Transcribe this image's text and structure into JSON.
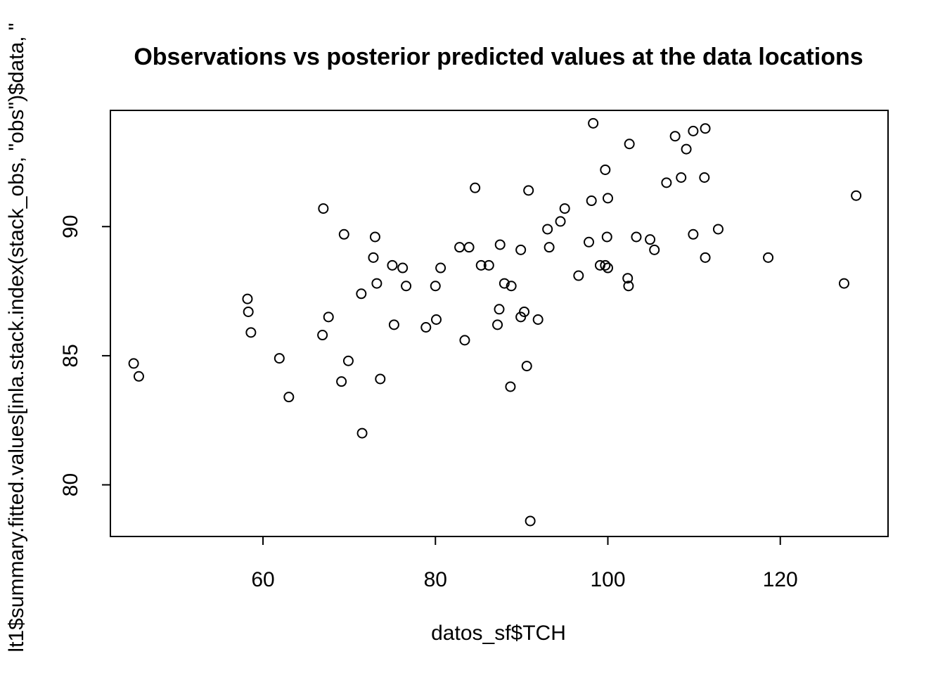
{
  "chart_data": {
    "type": "scatter",
    "title": "Observations vs posterior predicted values at the data locations",
    "xlabel": "datos_sf$TCH",
    "ylabel": "lt1$summary.fitted.values[inla.stack.index(stack_obs, \"obs\")$data, \"",
    "xlim": [
      42.3,
      132.5
    ],
    "ylim": [
      78.0,
      94.5
    ],
    "xticks": [
      60,
      80,
      100,
      120
    ],
    "yticks": [
      80,
      85,
      90
    ],
    "xtick_labels": [
      "60",
      "80",
      "100",
      "120"
    ],
    "ytick_labels": [
      "80",
      "85",
      "90"
    ],
    "grid": false,
    "points": [
      {
        "x": 45.0,
        "y": 84.7
      },
      {
        "x": 45.6,
        "y": 84.2
      },
      {
        "x": 58.2,
        "y": 87.2
      },
      {
        "x": 58.3,
        "y": 86.7
      },
      {
        "x": 58.6,
        "y": 85.9
      },
      {
        "x": 61.9,
        "y": 84.9
      },
      {
        "x": 63.0,
        "y": 83.4
      },
      {
        "x": 66.9,
        "y": 85.8
      },
      {
        "x": 67.0,
        "y": 90.7
      },
      {
        "x": 67.6,
        "y": 86.5
      },
      {
        "x": 69.1,
        "y": 84.0
      },
      {
        "x": 69.4,
        "y": 89.7
      },
      {
        "x": 69.9,
        "y": 84.8
      },
      {
        "x": 71.4,
        "y": 87.4
      },
      {
        "x": 71.5,
        "y": 82.0
      },
      {
        "x": 72.8,
        "y": 88.8
      },
      {
        "x": 73.0,
        "y": 89.6
      },
      {
        "x": 73.2,
        "y": 87.8
      },
      {
        "x": 73.6,
        "y": 84.1
      },
      {
        "x": 75.0,
        "y": 88.5
      },
      {
        "x": 75.2,
        "y": 86.2
      },
      {
        "x": 76.2,
        "y": 88.4
      },
      {
        "x": 76.6,
        "y": 87.7
      },
      {
        "x": 78.9,
        "y": 86.1
      },
      {
        "x": 80.0,
        "y": 87.7
      },
      {
        "x": 80.1,
        "y": 86.4
      },
      {
        "x": 80.6,
        "y": 88.4
      },
      {
        "x": 82.8,
        "y": 89.2
      },
      {
        "x": 83.4,
        "y": 85.6
      },
      {
        "x": 83.9,
        "y": 89.2
      },
      {
        "x": 84.6,
        "y": 91.5
      },
      {
        "x": 85.3,
        "y": 88.5
      },
      {
        "x": 86.2,
        "y": 88.5
      },
      {
        "x": 87.2,
        "y": 86.2
      },
      {
        "x": 87.4,
        "y": 86.8
      },
      {
        "x": 87.5,
        "y": 89.3
      },
      {
        "x": 88.0,
        "y": 87.8
      },
      {
        "x": 88.7,
        "y": 83.8
      },
      {
        "x": 88.8,
        "y": 87.7
      },
      {
        "x": 89.9,
        "y": 89.1
      },
      {
        "x": 89.9,
        "y": 86.5
      },
      {
        "x": 90.3,
        "y": 86.7
      },
      {
        "x": 90.6,
        "y": 84.6
      },
      {
        "x": 90.8,
        "y": 91.4
      },
      {
        "x": 91.0,
        "y": 78.6
      },
      {
        "x": 91.9,
        "y": 86.4
      },
      {
        "x": 93.0,
        "y": 89.9
      },
      {
        "x": 93.2,
        "y": 89.2
      },
      {
        "x": 94.5,
        "y": 90.2
      },
      {
        "x": 95.0,
        "y": 90.7
      },
      {
        "x": 96.6,
        "y": 88.1
      },
      {
        "x": 97.8,
        "y": 89.4
      },
      {
        "x": 98.1,
        "y": 91.0
      },
      {
        "x": 98.3,
        "y": 94.0
      },
      {
        "x": 99.1,
        "y": 88.5
      },
      {
        "x": 99.7,
        "y": 92.2
      },
      {
        "x": 99.7,
        "y": 88.5
      },
      {
        "x": 99.9,
        "y": 89.6
      },
      {
        "x": 100.0,
        "y": 91.1
      },
      {
        "x": 100.0,
        "y": 88.4
      },
      {
        "x": 102.3,
        "y": 88.0
      },
      {
        "x": 102.4,
        "y": 87.7
      },
      {
        "x": 102.5,
        "y": 93.2
      },
      {
        "x": 103.3,
        "y": 89.6
      },
      {
        "x": 104.9,
        "y": 89.5
      },
      {
        "x": 105.4,
        "y": 89.1
      },
      {
        "x": 106.8,
        "y": 91.7
      },
      {
        "x": 107.8,
        "y": 93.5
      },
      {
        "x": 108.5,
        "y": 91.9
      },
      {
        "x": 109.1,
        "y": 93.0
      },
      {
        "x": 109.9,
        "y": 89.7
      },
      {
        "x": 109.9,
        "y": 93.7
      },
      {
        "x": 111.2,
        "y": 91.9
      },
      {
        "x": 111.3,
        "y": 88.8
      },
      {
        "x": 111.3,
        "y": 93.8
      },
      {
        "x": 112.8,
        "y": 89.9
      },
      {
        "x": 118.6,
        "y": 88.8
      },
      {
        "x": 127.4,
        "y": 87.8
      },
      {
        "x": 128.8,
        "y": 91.2
      }
    ]
  }
}
